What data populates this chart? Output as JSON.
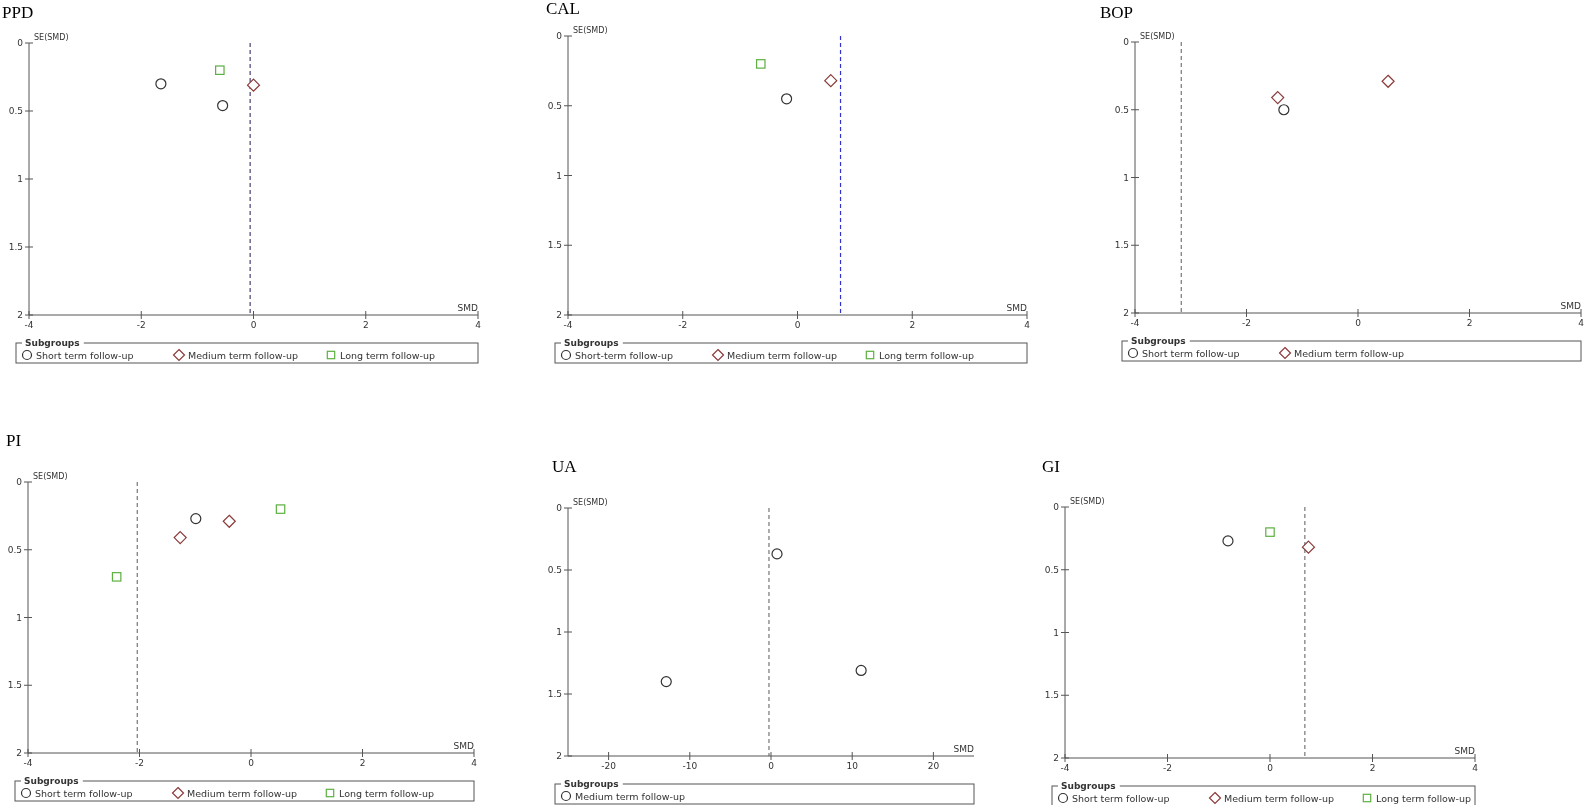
{
  "chart_data": [
    {
      "type": "scatter",
      "title": "PPD",
      "xlabel": "SMD",
      "ylabel": "SE(SMD)",
      "legend_title": "Subgroups",
      "legend": "bottom",
      "xlim": [
        -4,
        4
      ],
      "xticks": [
        -4,
        -2,
        0,
        2,
        4
      ],
      "ylim": [
        2,
        0
      ],
      "yticks": [
        0,
        0.5,
        1,
        1.5,
        2
      ],
      "series": [
        {
          "name": "Short term follow-up",
          "color": "#333333",
          "marker": "circle",
          "x": [
            -1.65,
            -0.55
          ],
          "values": [
            0.3,
            0.46
          ]
        },
        {
          "name": "Medium term follow-up",
          "color": "#8b3a3a",
          "marker": "diamond",
          "x": [
            0.0
          ],
          "values": [
            0.31
          ]
        },
        {
          "name": "Long term follow-up",
          "color": "#5cb040",
          "marker": "square",
          "x": [
            -0.6
          ],
          "values": [
            0.2
          ]
        }
      ],
      "ref_lines": [
        {
          "axis": "x",
          "value": -0.06,
          "color": "#4b3f72",
          "line_style": "dashed"
        }
      ]
    },
    {
      "type": "scatter",
      "title": "CAL",
      "xlabel": "SMD",
      "ylabel": "SE(SMD)",
      "legend_title": "Subgroups",
      "legend": "bottom",
      "xlim": [
        -4,
        4
      ],
      "xticks": [
        -4,
        -2,
        0,
        2,
        4
      ],
      "ylim": [
        2,
        0
      ],
      "yticks": [
        0,
        0.5,
        1,
        1.5,
        2
      ],
      "series": [
        {
          "name": "Short-term follow-up",
          "color": "#333333",
          "marker": "circle",
          "x": [
            -0.19
          ],
          "values": [
            0.45
          ]
        },
        {
          "name": "Medium term follow-up",
          "color": "#8b3a3a",
          "marker": "diamond",
          "x": [
            0.58
          ],
          "values": [
            0.32
          ]
        },
        {
          "name": "Long term follow-up",
          "color": "#5cb040",
          "marker": "square",
          "x": [
            -0.64
          ],
          "values": [
            0.2
          ]
        }
      ],
      "ref_lines": [
        {
          "axis": "x",
          "value": 0.75,
          "color": "#3333cc",
          "line_style": "dashed"
        }
      ]
    },
    {
      "type": "scatter",
      "title": "BOP",
      "xlabel": "SMD",
      "ylabel": "SE(SMD)",
      "legend_title": "Subgroups",
      "legend": "bottom",
      "xlim": [
        -4,
        4
      ],
      "xticks": [
        -4,
        -2,
        0,
        2,
        4
      ],
      "ylim": [
        2,
        0
      ],
      "yticks": [
        0,
        0.5,
        1,
        1.5,
        2
      ],
      "series": [
        {
          "name": "Short term follow-up",
          "color": "#333333",
          "marker": "circle",
          "x": [
            -1.33
          ],
          "values": [
            0.5
          ]
        },
        {
          "name": "Medium term follow-up",
          "color": "#8b3a3a",
          "marker": "diamond",
          "x": [
            -1.44,
            0.54
          ],
          "values": [
            0.41,
            0.29
          ]
        }
      ],
      "ref_lines": [
        {
          "axis": "x",
          "value": -3.17,
          "color": "#777777",
          "line_style": "dashed"
        }
      ]
    },
    {
      "type": "scatter",
      "title": "PI",
      "xlabel": "SMD",
      "ylabel": "SE(SMD)",
      "legend_title": "Subgroups",
      "legend": "bottom",
      "xlim": [
        -4,
        4
      ],
      "xticks": [
        -4,
        -2,
        0,
        2,
        4
      ],
      "ylim": [
        2,
        0
      ],
      "yticks": [
        0,
        0.5,
        1,
        1.5,
        2
      ],
      "series": [
        {
          "name": "Short term follow-up",
          "color": "#333333",
          "marker": "circle",
          "x": [
            -0.99
          ],
          "values": [
            0.27
          ]
        },
        {
          "name": "Medium term follow-up",
          "color": "#8b3a3a",
          "marker": "diamond",
          "x": [
            -1.27,
            -0.39
          ],
          "values": [
            0.41,
            0.29
          ]
        },
        {
          "name": "Long term follow-up",
          "color": "#5cb040",
          "marker": "square",
          "x": [
            0.53,
            -2.41
          ],
          "values": [
            0.2,
            0.7
          ]
        }
      ],
      "ref_lines": [
        {
          "axis": "x",
          "value": -2.04,
          "color": "#777777",
          "line_style": "dashed"
        }
      ]
    },
    {
      "type": "scatter",
      "title": "UA",
      "xlabel": "SMD",
      "ylabel": "SE(SMD)",
      "legend_title": "Subgroups",
      "legend": "bottom",
      "xlim": [
        -25,
        25
      ],
      "xticks": [
        -20,
        -10,
        0,
        10,
        20
      ],
      "ylim": [
        2,
        0
      ],
      "yticks": [
        0,
        0.5,
        1,
        1.5,
        2
      ],
      "series": [
        {
          "name": "Medium term follow-up",
          "color": "#333333",
          "marker": "circle",
          "x": [
            0.74,
            -12.9,
            11.1
          ],
          "values": [
            0.37,
            1.4,
            1.31
          ]
        }
      ],
      "ref_lines": [
        {
          "axis": "x",
          "value": -0.25,
          "color": "#777777",
          "line_style": "dashed"
        }
      ]
    },
    {
      "type": "scatter",
      "title": "GI",
      "xlabel": "SMD",
      "ylabel": "SE(SMD)",
      "legend_title": "Subgroups",
      "legend": "bottom",
      "xlim": [
        -4,
        4
      ],
      "xticks": [
        -4,
        -2,
        0,
        2,
        4
      ],
      "ylim": [
        2,
        0
      ],
      "yticks": [
        0,
        0.5,
        1,
        1.5,
        2
      ],
      "series": [
        {
          "name": "Short term follow-up",
          "color": "#333333",
          "marker": "circle",
          "x": [
            -0.82
          ],
          "values": [
            0.27
          ]
        },
        {
          "name": "Medium term follow-up",
          "color": "#8b3a3a",
          "marker": "diamond",
          "x": [
            0.75
          ],
          "values": [
            0.32
          ]
        },
        {
          "name": "Long term follow-up",
          "color": "#5cb040",
          "marker": "square",
          "x": [
            0.0
          ],
          "values": [
            0.2
          ]
        }
      ],
      "ref_lines": [
        {
          "axis": "x",
          "value": 0.68,
          "color": "#777777",
          "line_style": "dashed"
        }
      ]
    }
  ]
}
